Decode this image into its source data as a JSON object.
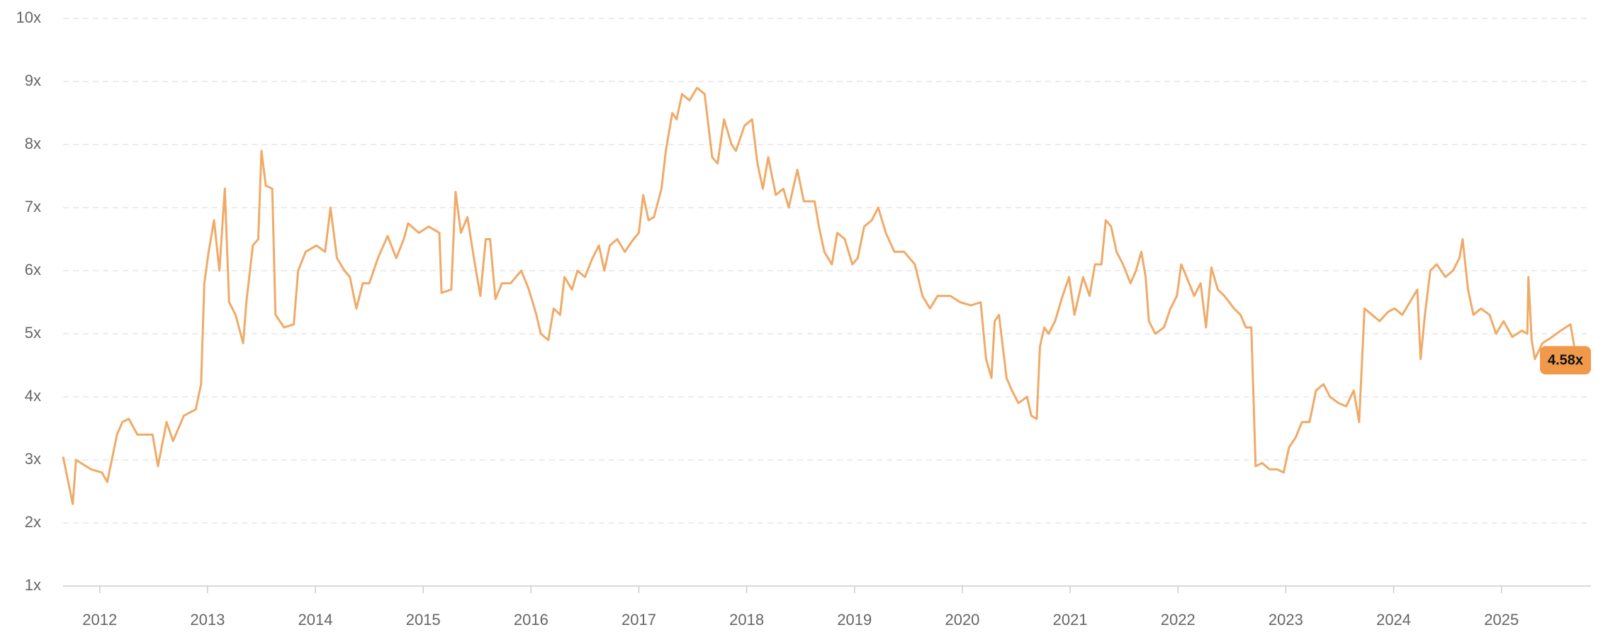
{
  "chart_data": {
    "type": "line",
    "x": [
      2011.66,
      2011.75,
      2011.78,
      2011.92,
      2012.02,
      2012.07,
      2012.16,
      2012.21,
      2012.27,
      2012.35,
      2012.49,
      2012.54,
      2012.62,
      2012.68,
      2012.78,
      2012.89,
      2012.94,
      2012.97,
      2013.01,
      2013.06,
      2013.11,
      2013.16,
      2013.2,
      2013.26,
      2013.33,
      2013.36,
      2013.42,
      2013.47,
      2013.5,
      2013.54,
      2013.6,
      2013.63,
      2013.71,
      2013.8,
      2013.84,
      2013.91,
      2014.01,
      2014.09,
      2014.14,
      2014.2,
      2014.27,
      2014.32,
      2014.38,
      2014.44,
      2014.5,
      2014.58,
      2014.67,
      2014.75,
      2014.82,
      2014.86,
      2014.96,
      2015.05,
      2015.15,
      2015.17,
      2015.26,
      2015.3,
      2015.35,
      2015.41,
      2015.48,
      2015.53,
      2015.58,
      2015.62,
      2015.67,
      2015.73,
      2015.81,
      2015.91,
      2015.98,
      2016.05,
      2016.09,
      2016.16,
      2016.21,
      2016.27,
      2016.31,
      2016.38,
      2016.43,
      2016.5,
      2016.57,
      2016.63,
      2016.68,
      2016.73,
      2016.8,
      2016.87,
      2016.95,
      2017.0,
      2017.04,
      2017.09,
      2017.14,
      2017.21,
      2017.25,
      2017.31,
      2017.35,
      2017.4,
      2017.47,
      2017.54,
      2017.61,
      2017.68,
      2017.73,
      2017.79,
      2017.86,
      2017.9,
      2017.98,
      2018.05,
      2018.1,
      2018.15,
      2018.2,
      2018.27,
      2018.34,
      2018.39,
      2018.47,
      2018.53,
      2018.63,
      2018.67,
      2018.72,
      2018.79,
      2018.84,
      2018.91,
      2018.98,
      2019.03,
      2019.09,
      2019.16,
      2019.22,
      2019.29,
      2019.37,
      2019.46,
      2019.56,
      2019.63,
      2019.7,
      2019.77,
      2019.89,
      2019.98,
      2020.08,
      2020.17,
      2020.22,
      2020.27,
      2020.3,
      2020.34,
      2020.41,
      2020.46,
      2020.52,
      2020.6,
      2020.64,
      2020.69,
      2020.72,
      2020.76,
      2020.8,
      2020.86,
      2020.93,
      2020.99,
      2021.04,
      2021.12,
      2021.18,
      2021.23,
      2021.29,
      2021.33,
      2021.38,
      2021.43,
      2021.49,
      2021.56,
      2021.61,
      2021.66,
      2021.7,
      2021.73,
      2021.79,
      2021.87,
      2021.93,
      2021.99,
      2022.03,
      2022.08,
      2022.15,
      2022.21,
      2022.26,
      2022.31,
      2022.37,
      2022.43,
      2022.52,
      2022.58,
      2022.63,
      2022.68,
      2022.72,
      2022.78,
      2022.85,
      2022.92,
      2022.98,
      2023.03,
      2023.09,
      2023.15,
      2023.22,
      2023.28,
      2023.35,
      2023.41,
      2023.49,
      2023.56,
      2023.63,
      2023.68,
      2023.73,
      2023.8,
      2023.87,
      2023.95,
      2024.01,
      2024.08,
      2024.15,
      2024.22,
      2024.25,
      2024.29,
      2024.34,
      2024.4,
      2024.48,
      2024.55,
      2024.61,
      2024.64,
      2024.69,
      2024.74,
      2024.81,
      2024.89,
      2024.95,
      2025.02,
      2025.1,
      2025.19,
      2025.24,
      2025.25,
      2025.28,
      2025.31,
      2025.38,
      2025.47,
      2025.55,
      2025.64,
      2025.68,
      2025.73
    ],
    "series": [
      {
        "color": "#f0aa68",
        "values": [
          3.05,
          2.3,
          3.0,
          2.85,
          2.8,
          2.65,
          3.4,
          3.6,
          3.65,
          3.4,
          3.4,
          2.9,
          3.6,
          3.3,
          3.7,
          3.8,
          4.2,
          5.8,
          6.3,
          6.8,
          6.0,
          7.3,
          5.5,
          5.3,
          4.85,
          5.5,
          6.4,
          6.5,
          7.9,
          7.35,
          7.3,
          5.3,
          5.1,
          5.15,
          6.0,
          6.3,
          6.4,
          6.3,
          7.0,
          6.2,
          6.0,
          5.9,
          5.4,
          5.8,
          5.8,
          6.2,
          6.55,
          6.2,
          6.5,
          6.75,
          6.6,
          6.7,
          6.6,
          5.65,
          5.7,
          7.25,
          6.6,
          6.85,
          6.1,
          5.6,
          6.5,
          6.5,
          5.55,
          5.8,
          5.8,
          6.0,
          5.7,
          5.3,
          5.0,
          4.9,
          5.4,
          5.3,
          5.9,
          5.7,
          6.0,
          5.9,
          6.2,
          6.4,
          6.0,
          6.4,
          6.5,
          6.3,
          6.5,
          6.6,
          7.2,
          6.8,
          6.85,
          7.3,
          7.9,
          8.5,
          8.4,
          8.8,
          8.7,
          8.9,
          8.8,
          7.8,
          7.7,
          8.4,
          8.0,
          7.9,
          8.3,
          8.4,
          7.7,
          7.3,
          7.8,
          7.2,
          7.3,
          7.0,
          7.6,
          7.1,
          7.1,
          6.7,
          6.3,
          6.1,
          6.6,
          6.5,
          6.1,
          6.2,
          6.7,
          6.8,
          7.0,
          6.6,
          6.3,
          6.3,
          6.1,
          5.6,
          5.4,
          5.6,
          5.6,
          5.5,
          5.45,
          5.5,
          4.6,
          4.3,
          5.2,
          5.3,
          4.3,
          4.1,
          3.9,
          4.0,
          3.7,
          3.65,
          4.8,
          5.1,
          5.0,
          5.2,
          5.6,
          5.9,
          5.3,
          5.9,
          5.6,
          6.1,
          6.1,
          6.8,
          6.7,
          6.3,
          6.1,
          5.8,
          6.0,
          6.3,
          5.9,
          5.2,
          5.0,
          5.1,
          5.4,
          5.6,
          6.1,
          5.9,
          5.6,
          5.8,
          5.1,
          6.05,
          5.7,
          5.6,
          5.4,
          5.3,
          5.1,
          5.1,
          2.9,
          2.95,
          2.85,
          2.85,
          2.8,
          3.2,
          3.35,
          3.6,
          3.6,
          4.1,
          4.2,
          4.0,
          3.9,
          3.85,
          4.1,
          3.6,
          5.4,
          5.3,
          5.2,
          5.35,
          5.4,
          5.3,
          5.5,
          5.7,
          4.6,
          5.3,
          6.0,
          6.1,
          5.9,
          6.0,
          6.2,
          6.5,
          5.7,
          5.3,
          5.4,
          5.3,
          5.0,
          5.2,
          4.95,
          5.05,
          5.0,
          5.9,
          4.9,
          4.6,
          4.85,
          4.95,
          5.05,
          5.15,
          4.75,
          4.58
        ]
      }
    ],
    "xlim": [
      2011.66,
      2025.83
    ],
    "xticks": [
      2012,
      2013,
      2014,
      2015,
      2016,
      2017,
      2018,
      2019,
      2020,
      2021,
      2022,
      2023,
      2024,
      2025
    ],
    "ylim": [
      1,
      10
    ],
    "yticks": [
      {
        "value": 1,
        "label": "1x"
      },
      {
        "value": 2,
        "label": "2x"
      },
      {
        "value": 3,
        "label": "3x"
      },
      {
        "value": 4,
        "label": "4x"
      },
      {
        "value": 5,
        "label": "5x"
      },
      {
        "value": 6,
        "label": "6x"
      },
      {
        "value": 7,
        "label": "7x"
      },
      {
        "value": 8,
        "label": "8x"
      },
      {
        "value": 9,
        "label": "9x"
      },
      {
        "value": 10,
        "label": "10x"
      }
    ],
    "grid": true,
    "annotation": {
      "value": 4.58,
      "label": "4.58x",
      "color": "#f0994a"
    }
  }
}
